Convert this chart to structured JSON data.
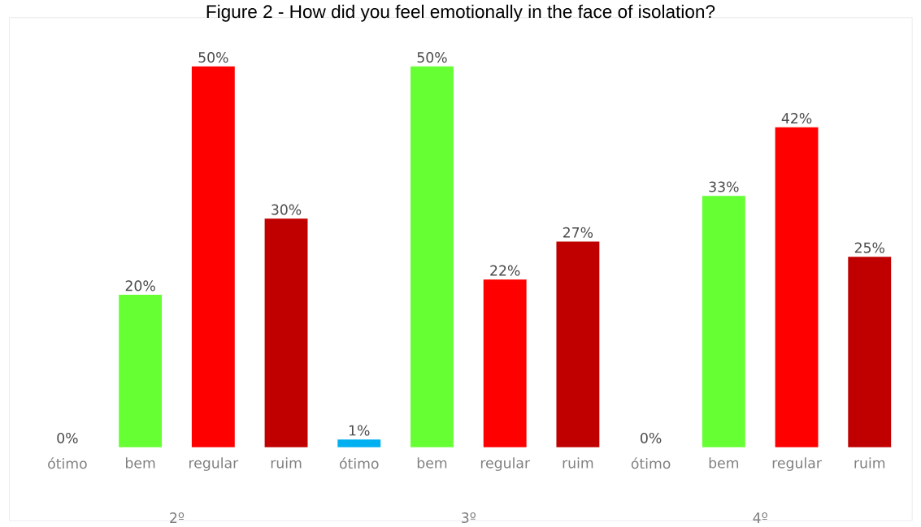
{
  "chart_data": {
    "type": "bar",
    "title": "Figure 2 - How did you feel emotionally in the face of isolation?",
    "categories": [
      "ótimo",
      "bem",
      "regular",
      "ruim",
      "ótimo",
      "bem",
      "regular",
      "ruim",
      "ótimo",
      "bem",
      "regular",
      "ruim"
    ],
    "values": [
      0,
      20,
      50,
      30,
      1,
      50,
      22,
      27,
      0,
      33,
      42,
      25
    ],
    "value_labels": [
      "0%",
      "20%",
      "50%",
      "30%",
      "1%",
      "50%",
      "22%",
      "27%",
      "0%",
      "33%",
      "42%",
      "25%"
    ],
    "colors": [
      "#00b0f0",
      "#66ff33",
      "#ff0000",
      "#c00000",
      "#00b0f0",
      "#66ff33",
      "#ff0000",
      "#c00000",
      "#00b0f0",
      "#66ff33",
      "#ff0000",
      "#c00000"
    ],
    "annotations": [
      "2º",
      "3º",
      "4º"
    ],
    "ylim": [
      0,
      56
    ]
  }
}
